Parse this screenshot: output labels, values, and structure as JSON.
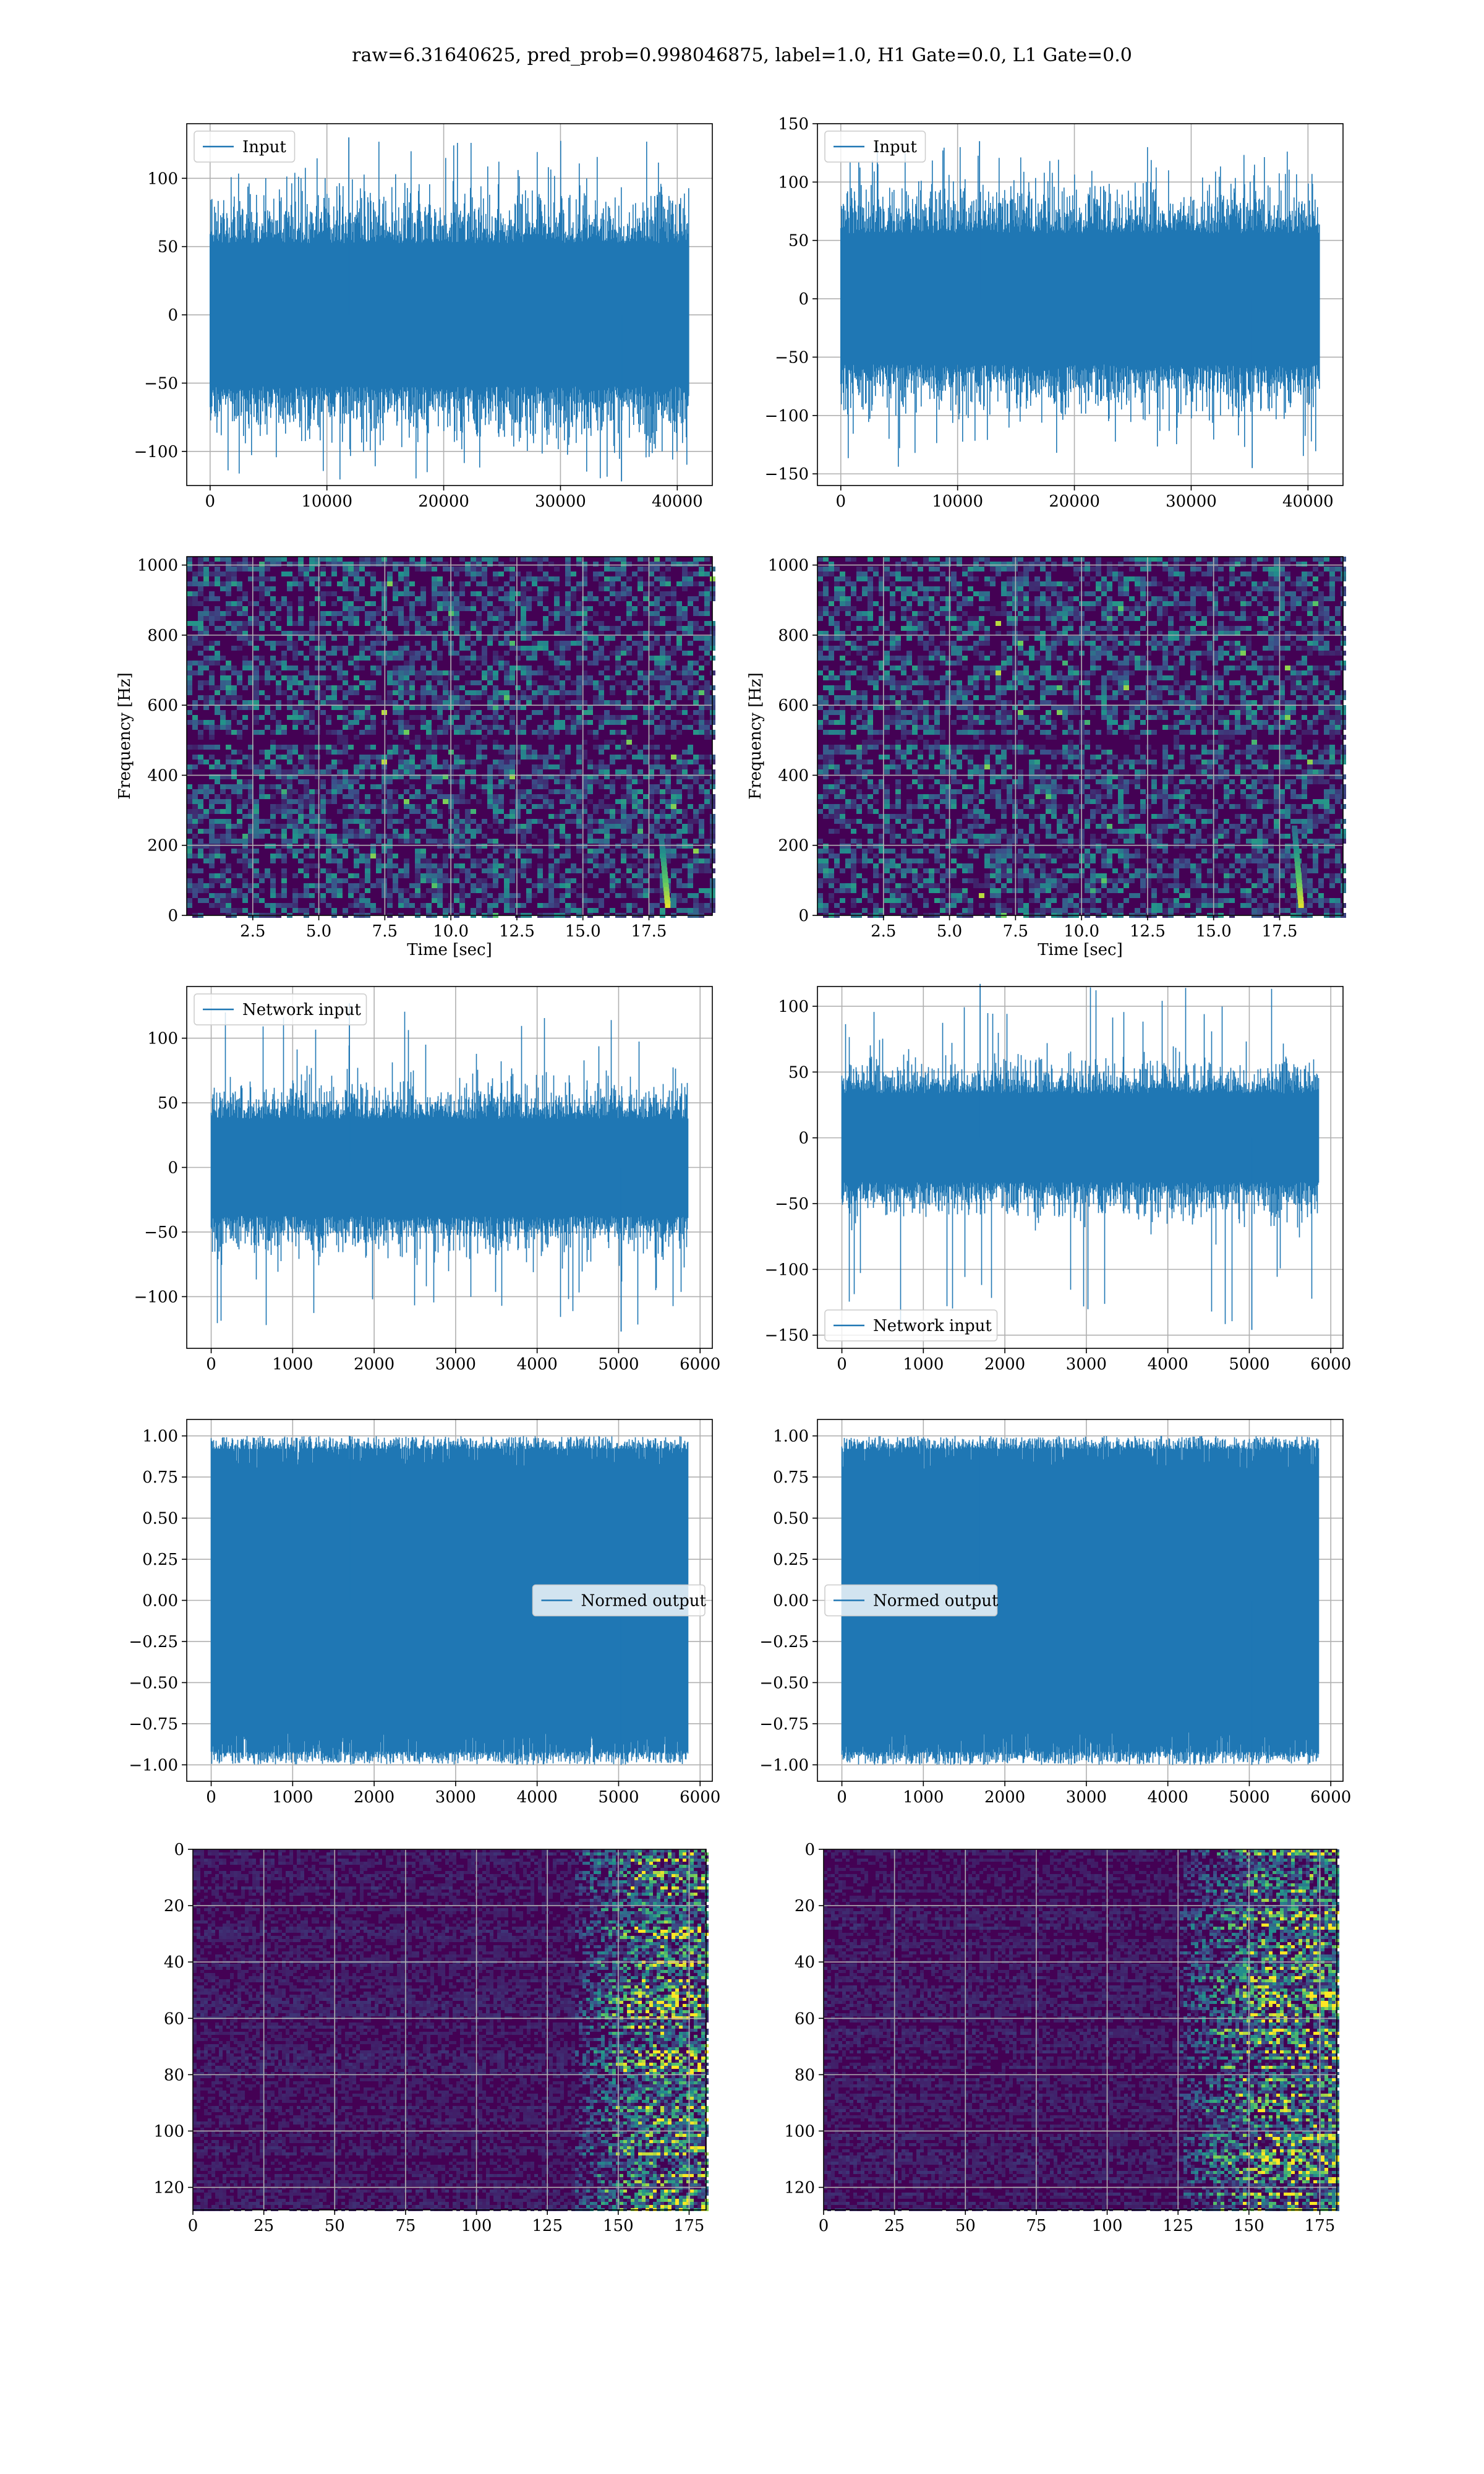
{
  "figure": {
    "title": "raw=6.31640625, pred_prob=0.998046875, label=1.0, H1 Gate=0.0, L1 Gate=0.0"
  },
  "colors": {
    "line": "#1f77b4",
    "grid": "#b0b0b0",
    "viridis_dark": "#440154",
    "viridis_mid": "#31688e",
    "viridis_green": "#35b779",
    "viridis_yellow": "#fde725"
  },
  "chart_data": [
    {
      "id": "input-left",
      "type": "line",
      "legend": "Input",
      "legend_position": "upper left",
      "xlim": [
        -2000,
        43000
      ],
      "ylim": [
        -125,
        140
      ],
      "xticks": [
        "0",
        "10000",
        "20000",
        "30000",
        "40000"
      ],
      "yticks": [
        "100",
        "50",
        "0",
        "−50",
        "−100"
      ],
      "series": [
        {
          "name": "Input",
          "n_points": 40960,
          "amplitude_typical": 70,
          "max": 130,
          "min": -122
        }
      ],
      "grid": true
    },
    {
      "id": "input-right",
      "type": "line",
      "legend": "Input",
      "legend_position": "upper left",
      "xlim": [
        -2000,
        43000
      ],
      "ylim": [
        -160,
        150
      ],
      "xticks": [
        "0",
        "10000",
        "20000",
        "30000",
        "40000"
      ],
      "yticks": [
        "150",
        "100",
        "50",
        "0",
        "−50",
        "−100",
        "−150"
      ],
      "series": [
        {
          "name": "Input",
          "n_points": 40960,
          "amplitude_typical": 75,
          "max": 135,
          "min": -145
        }
      ],
      "grid": true
    },
    {
      "id": "spec-left",
      "type": "heatmap",
      "colormap": "viridis",
      "xlabel": "Time [sec]",
      "ylabel": "Frequency [Hz]",
      "xlim": [
        0,
        19.9
      ],
      "ylim": [
        0,
        1024
      ],
      "xticks": [
        "2.5",
        "5.0",
        "7.5",
        "10.0",
        "12.5",
        "15.0",
        "17.5"
      ],
      "yticks": [
        "0",
        "200",
        "400",
        "600",
        "800",
        "1000"
      ],
      "grid": true,
      "features": {
        "dark_band_hz": [
          490,
          520
        ],
        "chirp_time_sec": 18.2,
        "chirp_freq_range_hz": [
          30,
          230
        ]
      }
    },
    {
      "id": "spec-right",
      "type": "heatmap",
      "colormap": "viridis",
      "xlabel": "Time [sec]",
      "ylabel": "Frequency [Hz]",
      "xlim": [
        0,
        19.9
      ],
      "ylim": [
        0,
        1024
      ],
      "xticks": [
        "2.5",
        "5.0",
        "7.5",
        "10.0",
        "12.5",
        "15.0",
        "17.5"
      ],
      "yticks": [
        "0",
        "200",
        "400",
        "600",
        "800",
        "1000"
      ],
      "grid": true,
      "features": {
        "dark_band_hz": [
          490,
          520
        ],
        "chirp_time_sec": 18.3,
        "chirp_freq_range_hz": [
          30,
          250
        ]
      }
    },
    {
      "id": "netin-left",
      "type": "line",
      "legend": "Network input",
      "legend_position": "upper left",
      "xlim": [
        -300,
        6150
      ],
      "ylim": [
        -140,
        140
      ],
      "xticks": [
        "0",
        "1000",
        "2000",
        "3000",
        "4000",
        "5000",
        "6000"
      ],
      "yticks": [
        "100",
        "50",
        "0",
        "−50",
        "−100"
      ],
      "series": [
        {
          "name": "Network input",
          "n_points": 5850,
          "amplitude_typical": 50,
          "max": 127,
          "min": -127
        }
      ],
      "grid": true
    },
    {
      "id": "netin-right",
      "type": "line",
      "legend": "Network input",
      "legend_position": "lower left",
      "xlim": [
        -300,
        6150
      ],
      "ylim": [
        -160,
        115
      ],
      "xticks": [
        "0",
        "1000",
        "2000",
        "3000",
        "4000",
        "5000",
        "6000"
      ],
      "yticks": [
        "100",
        "50",
        "0",
        "−50",
        "−100",
        "−150"
      ],
      "series": [
        {
          "name": "Network input",
          "n_points": 5850,
          "amplitude_typical": 45,
          "max": 117,
          "min": -146
        }
      ],
      "grid": true
    },
    {
      "id": "normed-left",
      "type": "line",
      "legend": "Normed output",
      "legend_position": "center right",
      "xlim": [
        -300,
        6150
      ],
      "ylim": [
        -1.1,
        1.1
      ],
      "xticks": [
        "0",
        "1000",
        "2000",
        "3000",
        "4000",
        "5000",
        "6000"
      ],
      "yticks": [
        "1.00",
        "0.75",
        "0.50",
        "0.25",
        "0.00",
        "−0.25",
        "−0.50",
        "−0.75",
        "−1.00"
      ],
      "series": [
        {
          "name": "Normed output",
          "n_points": 5850,
          "amplitude_typical": 0.92,
          "max": 1.0,
          "min": -1.0
        }
      ],
      "grid": true
    },
    {
      "id": "normed-right",
      "type": "line",
      "legend": "Normed output",
      "legend_position": "center left",
      "xlim": [
        -300,
        6150
      ],
      "ylim": [
        -1.1,
        1.1
      ],
      "xticks": [
        "0",
        "1000",
        "2000",
        "3000",
        "4000",
        "5000",
        "6000"
      ],
      "yticks": [
        "1.00",
        "0.75",
        "0.50",
        "0.25",
        "0.00",
        "−0.25",
        "−0.50",
        "−0.75",
        "−1.00"
      ],
      "series": [
        {
          "name": "Normed output",
          "n_points": 5850,
          "amplitude_typical": 0.92,
          "max": 1.0,
          "min": -1.0
        }
      ],
      "grid": true
    },
    {
      "id": "map-left",
      "type": "heatmap",
      "colormap": "viridis",
      "xlim": [
        0,
        181
      ],
      "ylim": [
        128,
        0
      ],
      "xticks": [
        "0",
        "25",
        "50",
        "75",
        "100",
        "125",
        "150",
        "175"
      ],
      "yticks": [
        "0",
        "20",
        "40",
        "60",
        "80",
        "100",
        "120"
      ],
      "grid": true,
      "features": {
        "bright_columns": [
          135,
          181
        ]
      }
    },
    {
      "id": "map-right",
      "type": "heatmap",
      "colormap": "viridis",
      "xlim": [
        0,
        181
      ],
      "ylim": [
        128,
        0
      ],
      "xticks": [
        "0",
        "25",
        "50",
        "75",
        "100",
        "125",
        "150",
        "175"
      ],
      "yticks": [
        "0",
        "20",
        "40",
        "60",
        "80",
        "100",
        "120"
      ],
      "grid": true,
      "features": {
        "bright_columns": [
          125,
          181
        ]
      }
    }
  ]
}
